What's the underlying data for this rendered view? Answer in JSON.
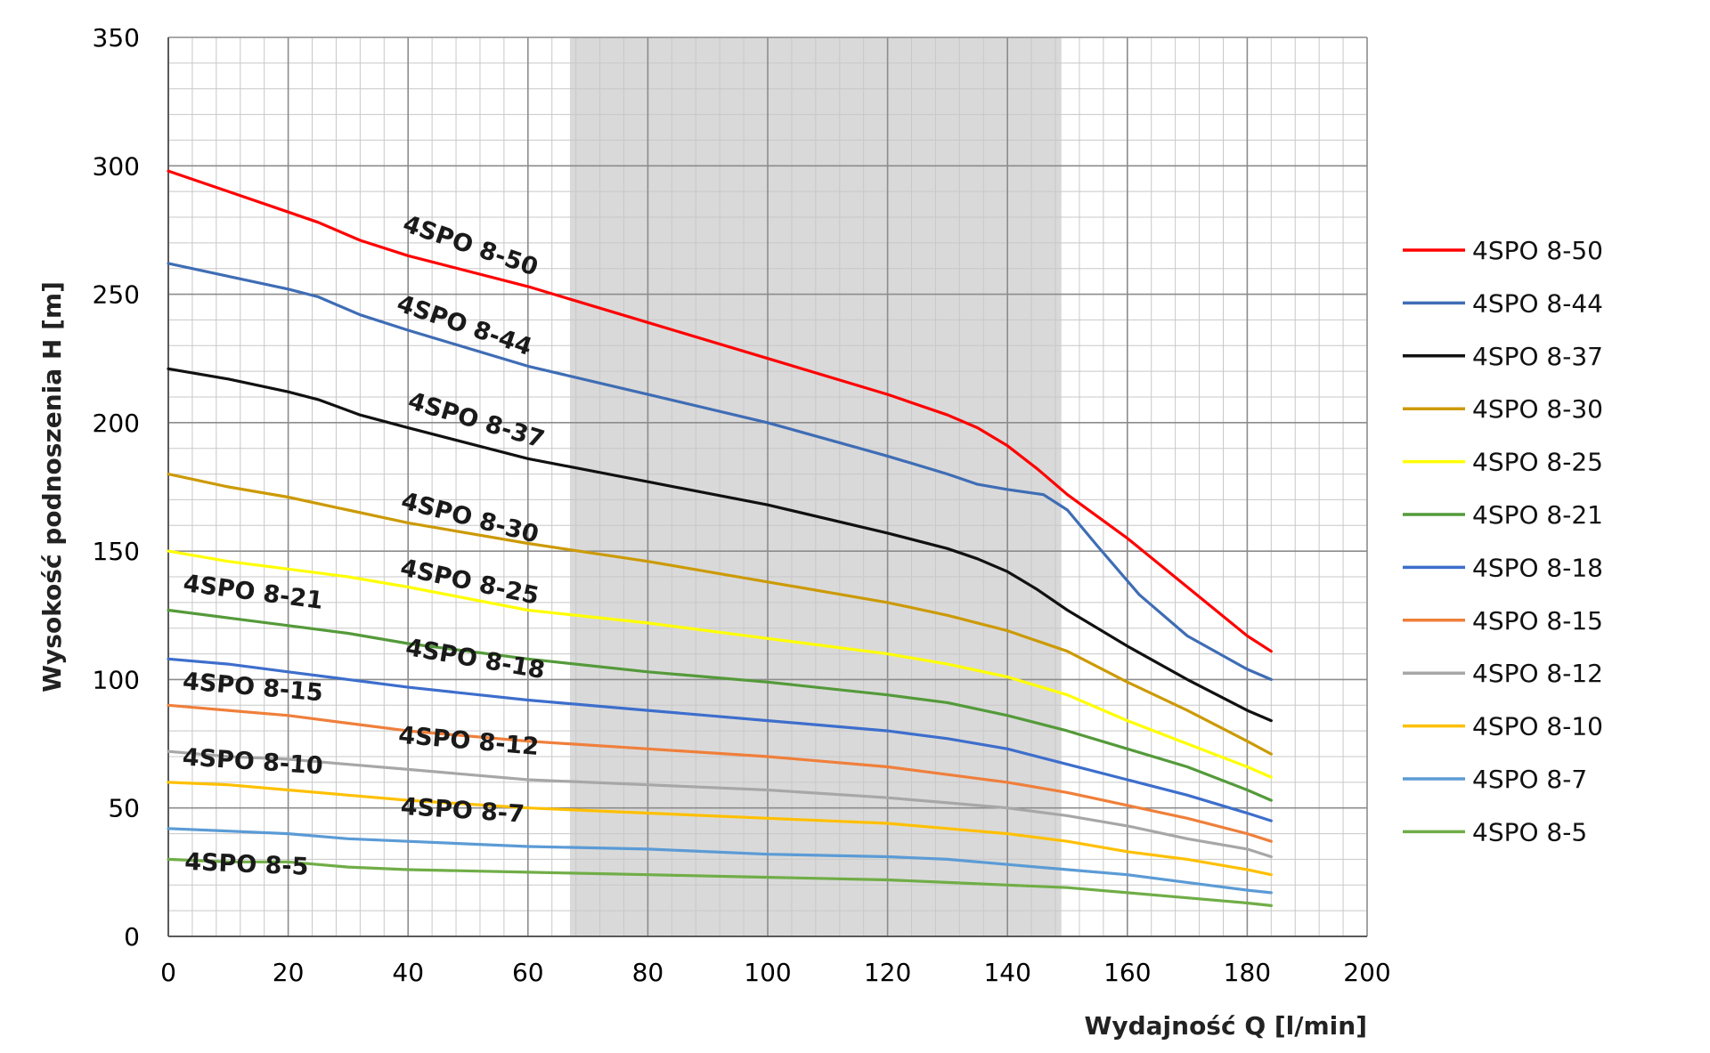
{
  "chart_data": {
    "type": "line",
    "title": "",
    "xlabel": "Wydajność Q [l/min]",
    "ylabel": "Wysokość podnoszenia H [m]",
    "xlim": [
      0,
      200
    ],
    "ylim": [
      0,
      350
    ],
    "x_ticks": [
      0,
      20,
      40,
      60,
      80,
      100,
      120,
      140,
      160,
      180,
      200
    ],
    "y_ticks": [
      0,
      50,
      100,
      150,
      200,
      250,
      300,
      350
    ],
    "grid": true,
    "legend_position": "right",
    "shaded_region": {
      "x_from": 67,
      "x_to": 149,
      "color": "#d9d9d9"
    },
    "series": [
      {
        "name": "4SPO 8-50",
        "color": "#ff0000",
        "points": [
          [
            0,
            298
          ],
          [
            10,
            290
          ],
          [
            20,
            282
          ],
          [
            25,
            278
          ],
          [
            32,
            271
          ],
          [
            40,
            265
          ],
          [
            60,
            253
          ],
          [
            80,
            239
          ],
          [
            100,
            225
          ],
          [
            120,
            211
          ],
          [
            130,
            203
          ],
          [
            135,
            198
          ],
          [
            140,
            191
          ],
          [
            145,
            182
          ],
          [
            150,
            172
          ],
          [
            160,
            155
          ],
          [
            170,
            136
          ],
          [
            180,
            117
          ],
          [
            184,
            111
          ]
        ]
      },
      {
        "name": "4SPO 8-44",
        "color": "#3f6db5",
        "points": [
          [
            0,
            262
          ],
          [
            10,
            257
          ],
          [
            20,
            252
          ],
          [
            25,
            249
          ],
          [
            32,
            242
          ],
          [
            40,
            236
          ],
          [
            60,
            222
          ],
          [
            80,
            211
          ],
          [
            100,
            200
          ],
          [
            120,
            187
          ],
          [
            130,
            180
          ],
          [
            135,
            176
          ],
          [
            140,
            174
          ],
          [
            146,
            172
          ],
          [
            150,
            166
          ],
          [
            155,
            152
          ],
          [
            162,
            133
          ],
          [
            170,
            117
          ],
          [
            180,
            104
          ],
          [
            184,
            100
          ]
        ]
      },
      {
        "name": "4SPO 8-37",
        "color": "#111111",
        "points": [
          [
            0,
            221
          ],
          [
            10,
            217
          ],
          [
            20,
            212
          ],
          [
            25,
            209
          ],
          [
            32,
            203
          ],
          [
            40,
            198
          ],
          [
            60,
            186
          ],
          [
            80,
            177
          ],
          [
            100,
            168
          ],
          [
            120,
            157
          ],
          [
            130,
            151
          ],
          [
            135,
            147
          ],
          [
            140,
            142
          ],
          [
            145,
            135
          ],
          [
            150,
            127
          ],
          [
            160,
            113
          ],
          [
            170,
            100
          ],
          [
            180,
            88
          ],
          [
            184,
            84
          ]
        ]
      },
      {
        "name": "4SPO 8-30",
        "color": "#cc9a06",
        "points": [
          [
            0,
            180
          ],
          [
            10,
            175
          ],
          [
            20,
            171
          ],
          [
            30,
            166
          ],
          [
            40,
            161
          ],
          [
            60,
            153
          ],
          [
            80,
            146
          ],
          [
            100,
            138
          ],
          [
            120,
            130
          ],
          [
            130,
            125
          ],
          [
            140,
            119
          ],
          [
            150,
            111
          ],
          [
            160,
            99
          ],
          [
            170,
            88
          ],
          [
            180,
            76
          ],
          [
            184,
            71
          ]
        ]
      },
      {
        "name": "4SPO 8-25",
        "color": "#ffff00",
        "points": [
          [
            0,
            150
          ],
          [
            10,
            146
          ],
          [
            20,
            143
          ],
          [
            30,
            140
          ],
          [
            40,
            136
          ],
          [
            60,
            127
          ],
          [
            80,
            122
          ],
          [
            100,
            116
          ],
          [
            120,
            110
          ],
          [
            130,
            106
          ],
          [
            140,
            101
          ],
          [
            150,
            94
          ],
          [
            160,
            84
          ],
          [
            170,
            75
          ],
          [
            180,
            66
          ],
          [
            184,
            62
          ]
        ]
      },
      {
        "name": "4SPO 8-21",
        "color": "#549a3a",
        "points": [
          [
            0,
            127
          ],
          [
            10,
            124
          ],
          [
            20,
            121
          ],
          [
            30,
            118
          ],
          [
            40,
            114
          ],
          [
            60,
            108
          ],
          [
            80,
            103
          ],
          [
            100,
            99
          ],
          [
            120,
            94
          ],
          [
            130,
            91
          ],
          [
            140,
            86
          ],
          [
            150,
            80
          ],
          [
            160,
            73
          ],
          [
            170,
            66
          ],
          [
            180,
            57
          ],
          [
            184,
            53
          ]
        ]
      },
      {
        "name": "4SPO 8-18",
        "color": "#3d6ecc",
        "points": [
          [
            0,
            108
          ],
          [
            10,
            106
          ],
          [
            20,
            103
          ],
          [
            30,
            100
          ],
          [
            40,
            97
          ],
          [
            60,
            92
          ],
          [
            80,
            88
          ],
          [
            100,
            84
          ],
          [
            120,
            80
          ],
          [
            130,
            77
          ],
          [
            140,
            73
          ],
          [
            150,
            67
          ],
          [
            160,
            61
          ],
          [
            170,
            55
          ],
          [
            180,
            48
          ],
          [
            184,
            45
          ]
        ]
      },
      {
        "name": "4SPO 8-15",
        "color": "#ef7f3b",
        "points": [
          [
            0,
            90
          ],
          [
            10,
            88
          ],
          [
            20,
            86
          ],
          [
            30,
            83
          ],
          [
            40,
            80
          ],
          [
            60,
            76
          ],
          [
            80,
            73
          ],
          [
            100,
            70
          ],
          [
            120,
            66
          ],
          [
            130,
            63
          ],
          [
            140,
            60
          ],
          [
            150,
            56
          ],
          [
            160,
            51
          ],
          [
            170,
            46
          ],
          [
            180,
            40
          ],
          [
            184,
            37
          ]
        ]
      },
      {
        "name": "4SPO 8-12",
        "color": "#a7a7a7",
        "points": [
          [
            0,
            72
          ],
          [
            10,
            70
          ],
          [
            20,
            69
          ],
          [
            30,
            67
          ],
          [
            40,
            65
          ],
          [
            60,
            61
          ],
          [
            80,
            59
          ],
          [
            100,
            57
          ],
          [
            120,
            54
          ],
          [
            130,
            52
          ],
          [
            140,
            50
          ],
          [
            150,
            47
          ],
          [
            160,
            43
          ],
          [
            170,
            38
          ],
          [
            180,
            34
          ],
          [
            184,
            31
          ]
        ]
      },
      {
        "name": "4SPO 8-10",
        "color": "#ffc000",
        "points": [
          [
            0,
            60
          ],
          [
            10,
            59
          ],
          [
            20,
            57
          ],
          [
            30,
            55
          ],
          [
            40,
            53
          ],
          [
            60,
            50
          ],
          [
            80,
            48
          ],
          [
            100,
            46
          ],
          [
            120,
            44
          ],
          [
            130,
            42
          ],
          [
            140,
            40
          ],
          [
            150,
            37
          ],
          [
            160,
            33
          ],
          [
            170,
            30
          ],
          [
            180,
            26
          ],
          [
            184,
            24
          ]
        ]
      },
      {
        "name": "4SPO 8-7",
        "color": "#5b9bd5",
        "points": [
          [
            0,
            42
          ],
          [
            10,
            41
          ],
          [
            20,
            40
          ],
          [
            30,
            38
          ],
          [
            40,
            37
          ],
          [
            60,
            35
          ],
          [
            80,
            34
          ],
          [
            100,
            32
          ],
          [
            120,
            31
          ],
          [
            130,
            30
          ],
          [
            140,
            28
          ],
          [
            150,
            26
          ],
          [
            160,
            24
          ],
          [
            170,
            21
          ],
          [
            180,
            18
          ],
          [
            184,
            17
          ]
        ]
      },
      {
        "name": "4SPO 8-5",
        "color": "#70ad47",
        "points": [
          [
            0,
            30
          ],
          [
            10,
            29
          ],
          [
            20,
            29
          ],
          [
            30,
            27
          ],
          [
            40,
            26
          ],
          [
            60,
            25
          ],
          [
            80,
            24
          ],
          [
            100,
            23
          ],
          [
            120,
            22
          ],
          [
            130,
            21
          ],
          [
            140,
            20
          ],
          [
            150,
            19
          ],
          [
            160,
            17
          ],
          [
            170,
            15
          ],
          [
            180,
            13
          ],
          [
            184,
            12
          ]
        ]
      }
    ],
    "annotations": [
      {
        "text": "4SPO 8-50",
        "series": "4SPO 8-50",
        "x": 50,
        "y": 266,
        "rotate_data": -8
      },
      {
        "text": "4SPO 8-44",
        "series": "4SPO 8-44",
        "x": 49,
        "y": 235,
        "rotate_data": -8
      },
      {
        "text": "4SPO 8-37",
        "series": "4SPO 8-37",
        "x": 51,
        "y": 198,
        "rotate_data": -7
      },
      {
        "text": "4SPO 8-30",
        "series": "4SPO 8-30",
        "x": 50,
        "y": 160,
        "rotate_data": -6
      },
      {
        "text": "4SPO 8-25",
        "series": "4SPO 8-25",
        "x": 50,
        "y": 135,
        "rotate_data": -5
      },
      {
        "text": "4SPO 8-21",
        "series": "4SPO 8-21",
        "x": 14,
        "y": 131,
        "rotate_data": -3
      },
      {
        "text": "4SPO 8-18",
        "series": "4SPO 8-18",
        "x": 51,
        "y": 105,
        "rotate_data": -4
      },
      {
        "text": "4SPO 8-15",
        "series": "4SPO 8-15",
        "x": 14,
        "y": 94,
        "rotate_data": -2
      },
      {
        "text": "4SPO 8-12",
        "series": "4SPO 8-12",
        "x": 50,
        "y": 73,
        "rotate_data": -2
      },
      {
        "text": "4SPO 8-10",
        "series": "4SPO 8-10",
        "x": 14,
        "y": 65,
        "rotate_data": -1.5
      },
      {
        "text": "4SPO 8-7",
        "series": "4SPO 8-7",
        "x": 49,
        "y": 46,
        "rotate_data": -1.5
      },
      {
        "text": "4SPO 8-5",
        "series": "4SPO 8-5",
        "x": 13,
        "y": 25,
        "rotate_data": -1
      }
    ]
  }
}
